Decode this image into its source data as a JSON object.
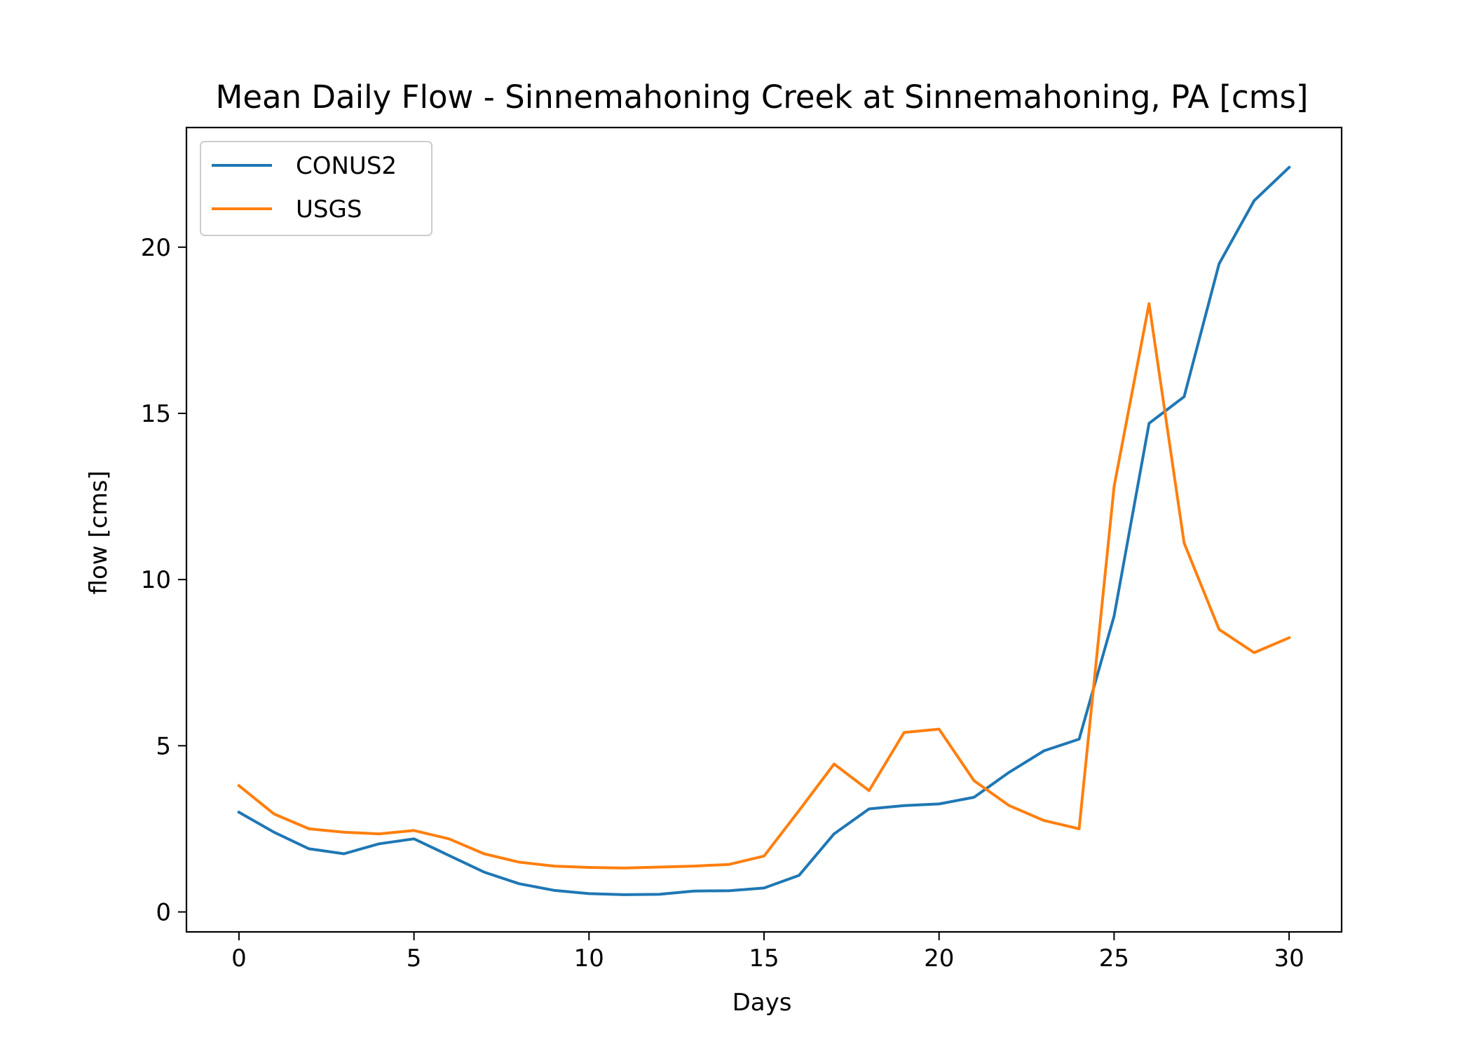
{
  "chart_data": {
    "type": "line",
    "title": "Mean Daily Flow - Sinnemahoning Creek at Sinnemahoning, PA [cms]",
    "xlabel": "Days",
    "ylabel": "flow [cms]",
    "xlim": [
      -1.5,
      31.5
    ],
    "ylim": [
      -0.6,
      23.6
    ],
    "xticks": [
      0,
      5,
      10,
      15,
      20,
      25,
      30
    ],
    "yticks": [
      0,
      5,
      10,
      15,
      20
    ],
    "grid": false,
    "legend": "top-left",
    "x": [
      0,
      1,
      2,
      3,
      4,
      5,
      6,
      7,
      8,
      9,
      10,
      11,
      12,
      13,
      14,
      15,
      16,
      17,
      18,
      19,
      20,
      21,
      22,
      23,
      24,
      25,
      26,
      27,
      28,
      29,
      30
    ],
    "series": [
      {
        "name": "CONUS2",
        "color": "#1f77b4",
        "values": [
          3.0,
          2.4,
          1.9,
          1.75,
          2.05,
          2.2,
          1.7,
          1.2,
          0.85,
          0.65,
          0.55,
          0.52,
          0.53,
          0.63,
          0.64,
          0.72,
          1.1,
          2.35,
          3.1,
          3.2,
          3.25,
          3.45,
          4.2,
          4.85,
          5.2,
          8.9,
          14.7,
          15.5,
          19.5,
          21.4,
          22.4
        ]
      },
      {
        "name": "USGS",
        "color": "#ff7f0e",
        "values": [
          3.8,
          2.95,
          2.5,
          2.4,
          2.35,
          2.45,
          2.2,
          1.75,
          1.5,
          1.38,
          1.34,
          1.32,
          1.35,
          1.38,
          1.43,
          1.68,
          3.05,
          4.45,
          3.65,
          5.4,
          5.5,
          3.95,
          3.2,
          2.75,
          2.5,
          12.8,
          18.3,
          11.1,
          8.5,
          7.8,
          8.25
        ]
      }
    ]
  }
}
